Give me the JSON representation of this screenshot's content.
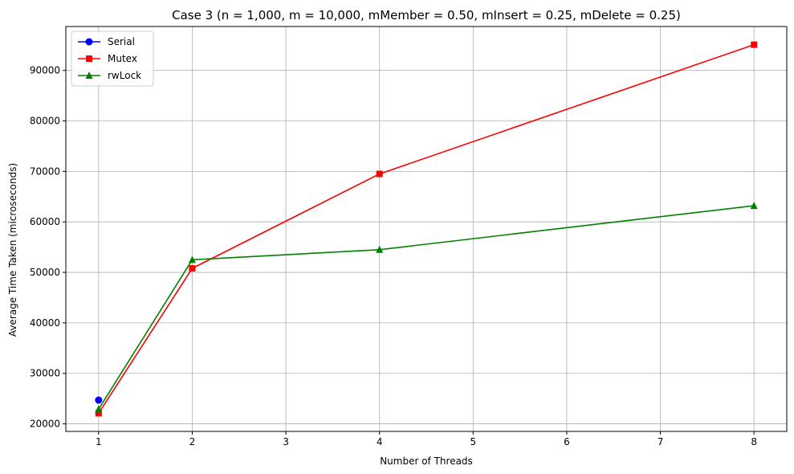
{
  "chart_data": {
    "type": "line",
    "title": "Case 3 (n = 1,000, m = 10,000, mMember = 0.50, mInsert = 0.25, mDelete = 0.25)",
    "xlabel": "Number of Threads",
    "ylabel": "Average Time Taken (microseconds)",
    "xlim": [
      0.65,
      8.35
    ],
    "ylim": [
      18500,
      98700
    ],
    "xticks": [
      1,
      2,
      3,
      4,
      5,
      6,
      7,
      8
    ],
    "yticks": [
      20000,
      30000,
      40000,
      50000,
      60000,
      70000,
      80000,
      90000
    ],
    "grid": true,
    "legend_position": "top-left",
    "series": [
      {
        "name": "Serial",
        "color": "#0000ff",
        "marker": "circle",
        "x": [
          1
        ],
        "y": [
          24700
        ]
      },
      {
        "name": "Mutex",
        "color": "#ff0000",
        "marker": "square",
        "x": [
          1,
          2,
          4,
          8
        ],
        "y": [
          22100,
          50800,
          69500,
          95100
        ]
      },
      {
        "name": "rwLock",
        "color": "#008000",
        "marker": "triangle",
        "x": [
          1,
          2,
          4,
          8
        ],
        "y": [
          22900,
          52500,
          54500,
          63200
        ]
      }
    ]
  }
}
